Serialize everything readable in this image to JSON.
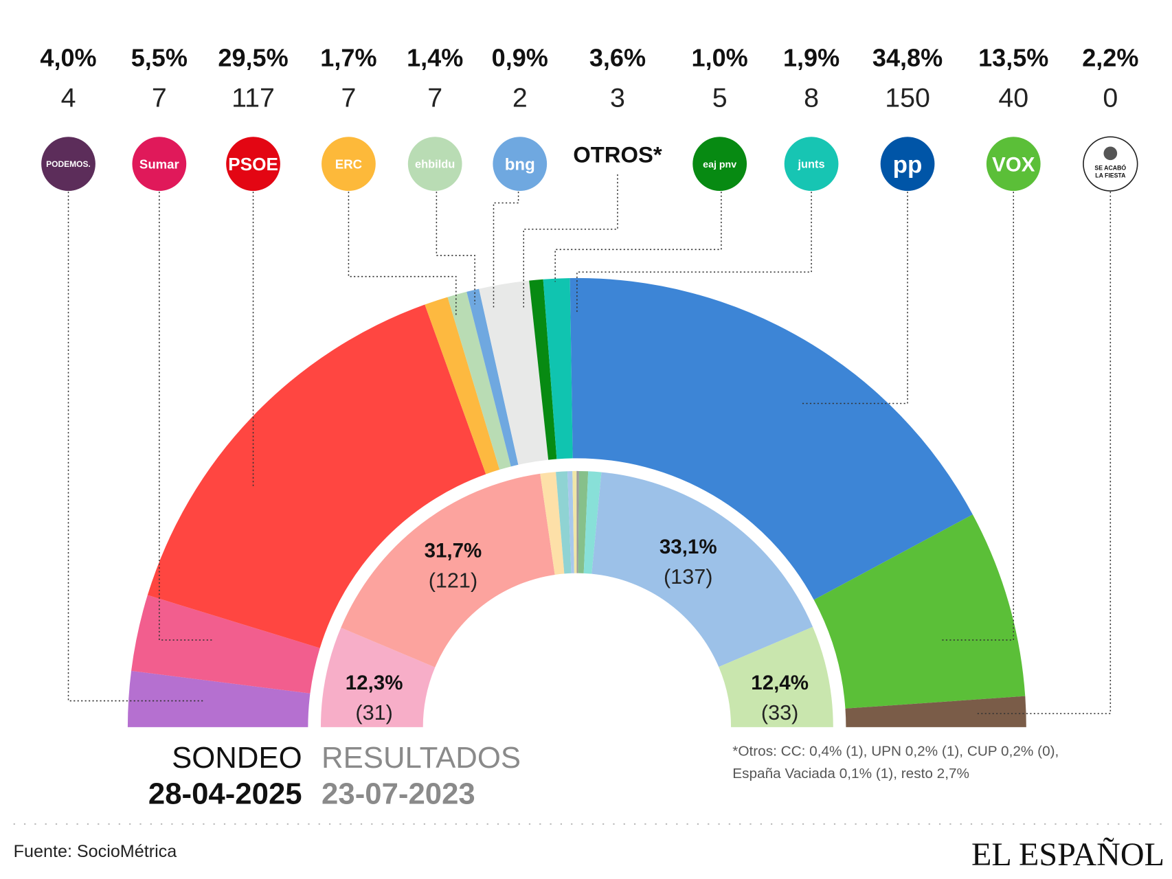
{
  "chart_data": {
    "type": "pie",
    "subtype": "semicircle-double-ring",
    "outer_ring": {
      "title": "SONDEO",
      "date": "28-04-2025",
      "parties": [
        {
          "id": "podemos",
          "pct_label": "4,0%",
          "pct": 4.0,
          "seats": "4",
          "color": "#b570d0",
          "logo_color": "#5c2d5a",
          "logo_text": "PODEMOS."
        },
        {
          "id": "sumar",
          "pct_label": "5,5%",
          "pct": 5.5,
          "seats": "7",
          "color": "#f25e8e",
          "logo_color": "#e0195a",
          "logo_text": "Sumar"
        },
        {
          "id": "psoe",
          "pct_label": "29,5%",
          "pct": 29.5,
          "seats": "117",
          "color": "#ff4641",
          "logo_color": "#e30613",
          "logo_text": "PSOE"
        },
        {
          "id": "erc",
          "pct_label": "1,7%",
          "pct": 1.7,
          "seats": "7",
          "color": "#fdb940",
          "logo_color": "#fdb93a",
          "logo_text": "ERC"
        },
        {
          "id": "bildu",
          "pct_label": "1,4%",
          "pct": 1.4,
          "seats": "7",
          "color": "#b9dcb4",
          "logo_color": "#b9dcb4",
          "logo_text": "ehbildu"
        },
        {
          "id": "bng",
          "pct_label": "0,9%",
          "pct": 0.9,
          "seats": "2",
          "color": "#6fa8e0",
          "logo_color": "#6fa8e0",
          "logo_text": "bng"
        },
        {
          "id": "otros",
          "pct_label": "3,6%",
          "pct": 3.6,
          "seats": "3",
          "color": "#e8e9e8",
          "logo_color": "",
          "logo_text": "OTROS*"
        },
        {
          "id": "pnv",
          "pct_label": "1,0%",
          "pct": 1.0,
          "seats": "5",
          "color": "#078a12",
          "logo_color": "#078a12",
          "logo_text": "eaj pnv"
        },
        {
          "id": "junts",
          "pct_label": "1,9%",
          "pct": 1.9,
          "seats": "8",
          "color": "#10c4b0",
          "logo_color": "#17c5b3",
          "logo_text": "junts"
        },
        {
          "id": "pp",
          "pct_label": "34,8%",
          "pct": 34.8,
          "seats": "150",
          "color": "#3d85d6",
          "logo_color": "#0055a7",
          "logo_text": "pp"
        },
        {
          "id": "vox",
          "pct_label": "13,5%",
          "pct": 13.5,
          "seats": "40",
          "color": "#5bbf38",
          "logo_color": "#5bbf38",
          "logo_text": "VOX"
        },
        {
          "id": "salf",
          "pct_label": "2,2%",
          "pct": 2.2,
          "seats": "0",
          "color": "#7a5c48",
          "logo_color": "#ffffff",
          "logo_text": "SE ACABÓ LA FIESTA"
        }
      ]
    },
    "inner_ring": {
      "title": "RESULTADOS",
      "date": "23-07-2023",
      "segments": [
        {
          "id": "sumar",
          "pct": 12.3,
          "color": "#f7aec8",
          "label": "12,3%",
          "seats_label": "(31)"
        },
        {
          "id": "psoe",
          "pct": 31.7,
          "color": "#fca39e",
          "label": "31,7%",
          "seats_label": "(121)"
        },
        {
          "id": "erc",
          "pct": 1.9,
          "color": "#fde0a8"
        },
        {
          "id": "bildu",
          "pct": 1.4,
          "color": "#8fd3d3"
        },
        {
          "id": "bng",
          "pct": 0.6,
          "color": "#a8c8ec"
        },
        {
          "id": "cc",
          "pct": 0.5,
          "color": "#f0e6a8"
        },
        {
          "id": "otros",
          "pct": 0.3,
          "color": "#9a9a9a"
        },
        {
          "id": "pnv",
          "pct": 1.1,
          "color": "#86c08a"
        },
        {
          "id": "junts",
          "pct": 1.6,
          "color": "#88e0d8"
        },
        {
          "id": "pp",
          "pct": 33.1,
          "color": "#9cc1e8",
          "label": "33,1%",
          "seats_label": "(137)"
        },
        {
          "id": "vox",
          "pct": 12.4,
          "color": "#c9e6ae",
          "label": "12,4%",
          "seats_label": "(33)"
        }
      ]
    }
  },
  "footnote": {
    "line1": "*Otros: CC: 0,4% (1), UPN 0,2% (1), CUP 0,2% (0),",
    "line2": "España Vaciada 0,1% (1), resto 2,7%"
  },
  "source": "Fuente: SocioMétrica",
  "brand": "EL ESPAÑOL"
}
